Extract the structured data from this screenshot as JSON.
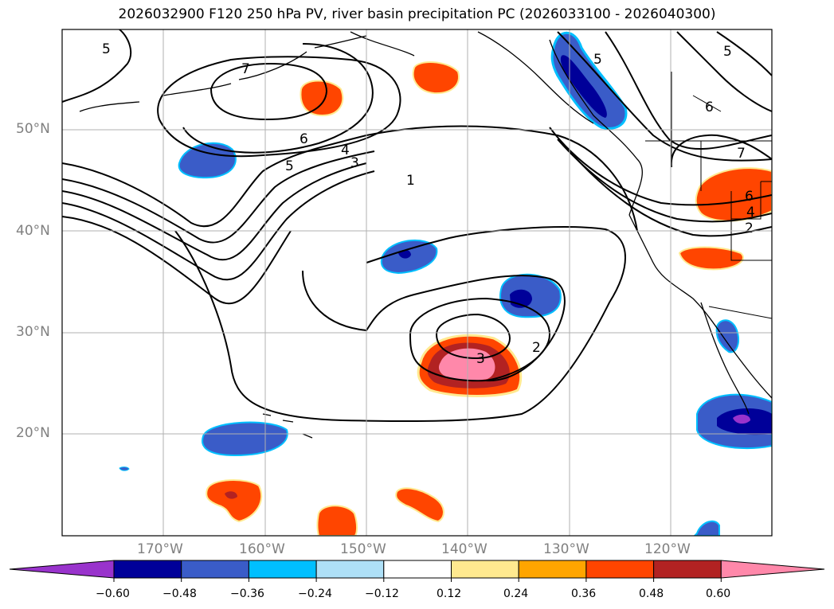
{
  "title": "2026032900 F120 250 hPa PV, river basin precipitation PC (2026033100 - 2026040300)",
  "lat_labels": [
    "50°N",
    "40°N",
    "30°N",
    "20°N"
  ],
  "lon_labels": [
    "170°W",
    "160°W",
    "150°W",
    "140°W",
    "130°W",
    "120°W"
  ],
  "contour_labels": [
    "5",
    "7",
    "6",
    "5",
    "4",
    "3",
    "1",
    "2",
    "3",
    "5",
    "6",
    "7",
    "6",
    "4",
    "2",
    "5"
  ],
  "colorbar": {
    "ticks": [
      "−0.60",
      "−0.48",
      "−0.36",
      "−0.24",
      "−0.12",
      "0.12",
      "0.24",
      "0.36",
      "0.48",
      "0.60"
    ],
    "colors": [
      "#9933cc",
      "#000099",
      "#3a5cc8",
      "#00bfff",
      "#aee0f7",
      "#ffffff",
      "#ffe98f",
      "#ffa500",
      "#ff4500",
      "#b22222",
      "#ff88aa"
    ]
  },
  "palette": {
    "neg_strong": "#000099",
    "neg_mid": "#3a5cc8",
    "neg_light": "#00bfff",
    "pos_light": "#ffe98f",
    "pos_mid": "#ff4500",
    "pos_strong": "#b22222",
    "pos_max": "#ff88aa",
    "neg_max": "#9933cc"
  }
}
